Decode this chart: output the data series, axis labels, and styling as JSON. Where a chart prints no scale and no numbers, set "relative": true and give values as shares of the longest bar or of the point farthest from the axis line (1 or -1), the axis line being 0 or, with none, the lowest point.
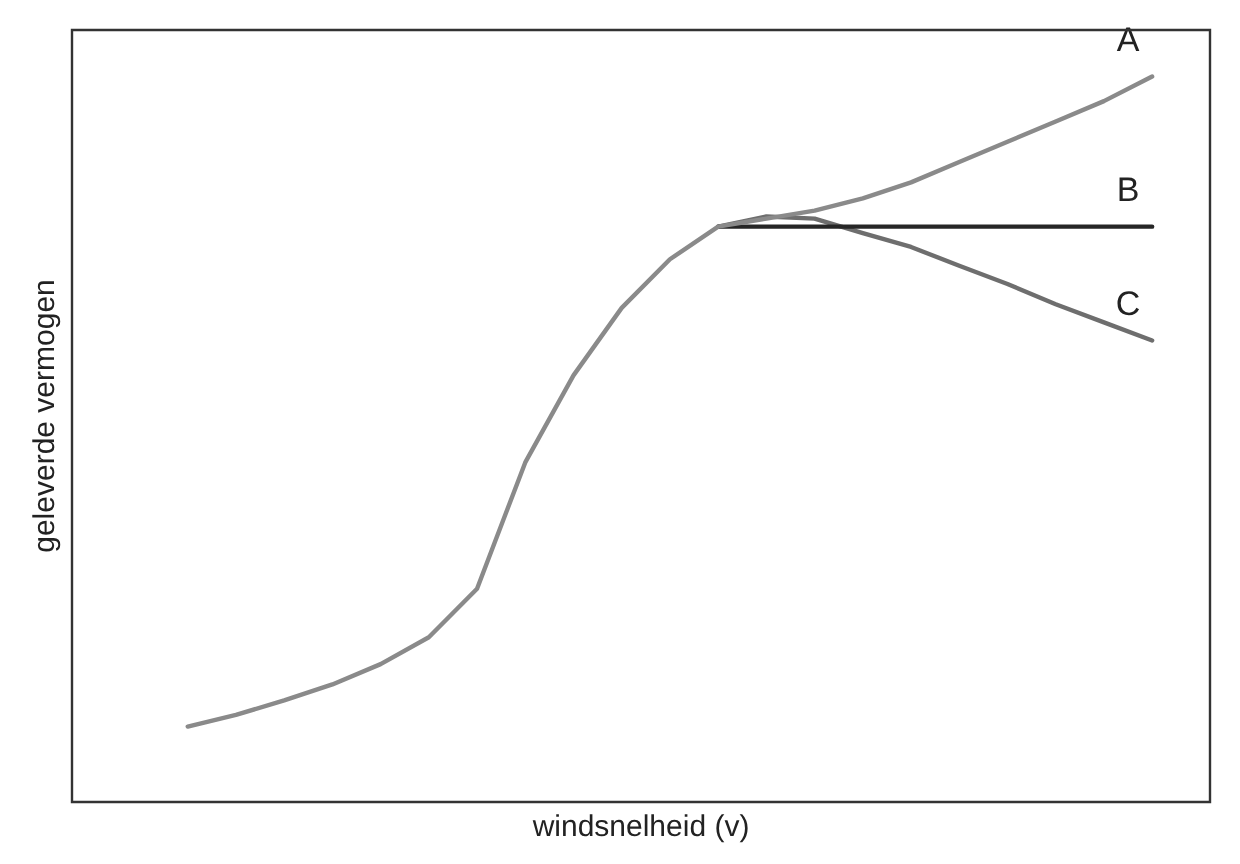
{
  "chart_data": {
    "type": "line",
    "relative": true,
    "xlabel": "windsnelheid (v)",
    "ylabel": "geleverde vermogen",
    "legend": false,
    "grid": false,
    "marker": "none",
    "line_style": "solid",
    "categories": [
      null,
      null,
      null,
      null,
      null,
      null,
      null,
      null,
      null,
      null,
      null,
      null,
      null,
      null,
      null,
      null,
      null,
      null,
      null,
      null,
      null
    ],
    "series": [
      {
        "name": "A",
        "color": "#8a8a8a",
        "values": [
          0.104,
          0.12,
          0.14,
          0.162,
          0.19,
          0.227,
          0.294,
          0.468,
          0.588,
          0.681,
          0.748,
          0.793,
          0.804,
          0.815,
          0.832,
          0.854,
          0.882,
          0.91,
          0.938,
          0.966,
          1
        ]
      },
      {
        "name": "B",
        "color": "#262626",
        "values": [
          null,
          null,
          null,
          null,
          null,
          null,
          null,
          null,
          null,
          null,
          null,
          0.793,
          0.793,
          0.793,
          0.793,
          0.793,
          0.793,
          0.793,
          0.793,
          0.793,
          0.793
        ]
      },
      {
        "name": "C",
        "color": "#6e6e6e",
        "values": [
          null,
          null,
          null,
          null,
          null,
          null,
          null,
          null,
          null,
          null,
          null,
          0.793,
          0.807,
          0.804,
          0.784,
          0.765,
          0.739,
          0.714,
          0.686,
          0.661,
          0.636
        ]
      }
    ]
  }
}
